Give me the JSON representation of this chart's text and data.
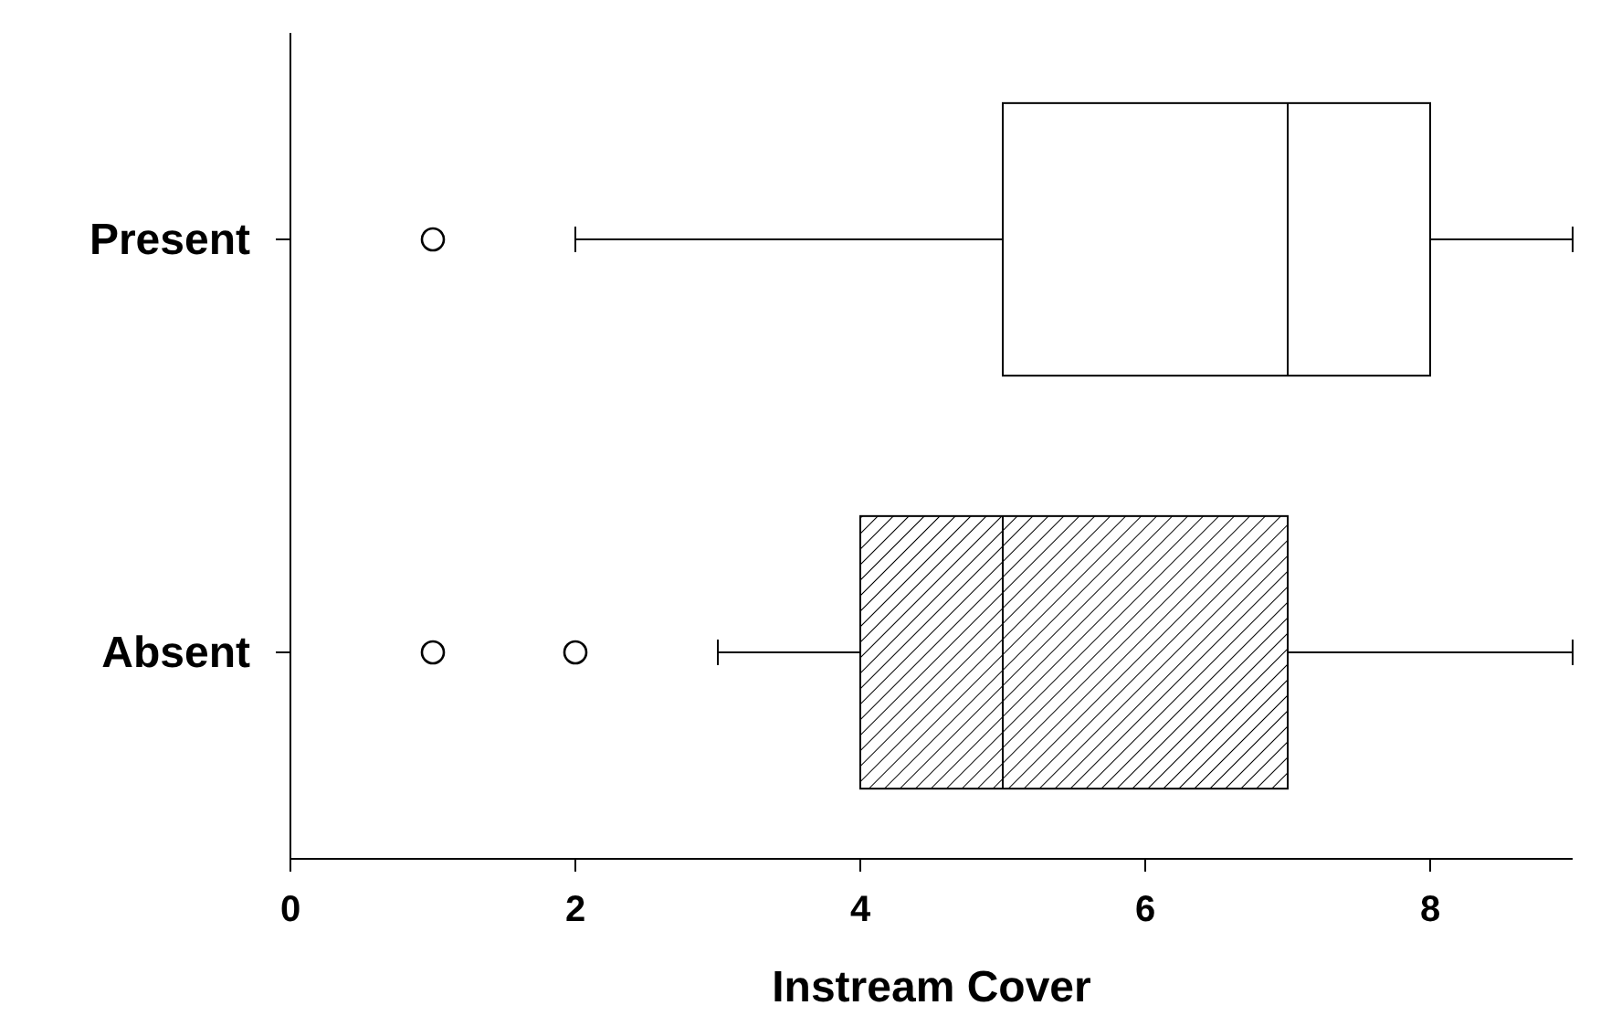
{
  "chart_data": {
    "type": "box",
    "orientation": "horizontal",
    "xlabel": "Instream Cover",
    "categories": [
      "Present",
      "Absent"
    ],
    "boxes": [
      {
        "low": 2,
        "q1": 5,
        "median": 7,
        "q3": 8,
        "high": 9,
        "outliers": [
          1
        ]
      },
      {
        "low": 3,
        "q1": 4,
        "median": 5,
        "q3": 7,
        "high": 9,
        "outliers": [
          1,
          2
        ]
      }
    ],
    "colors": [
      "#ffffff",
      "#000000"
    ],
    "xlim": [
      0,
      9
    ],
    "xticks": [
      0,
      2,
      4,
      6,
      8
    ],
    "grid": false
  }
}
